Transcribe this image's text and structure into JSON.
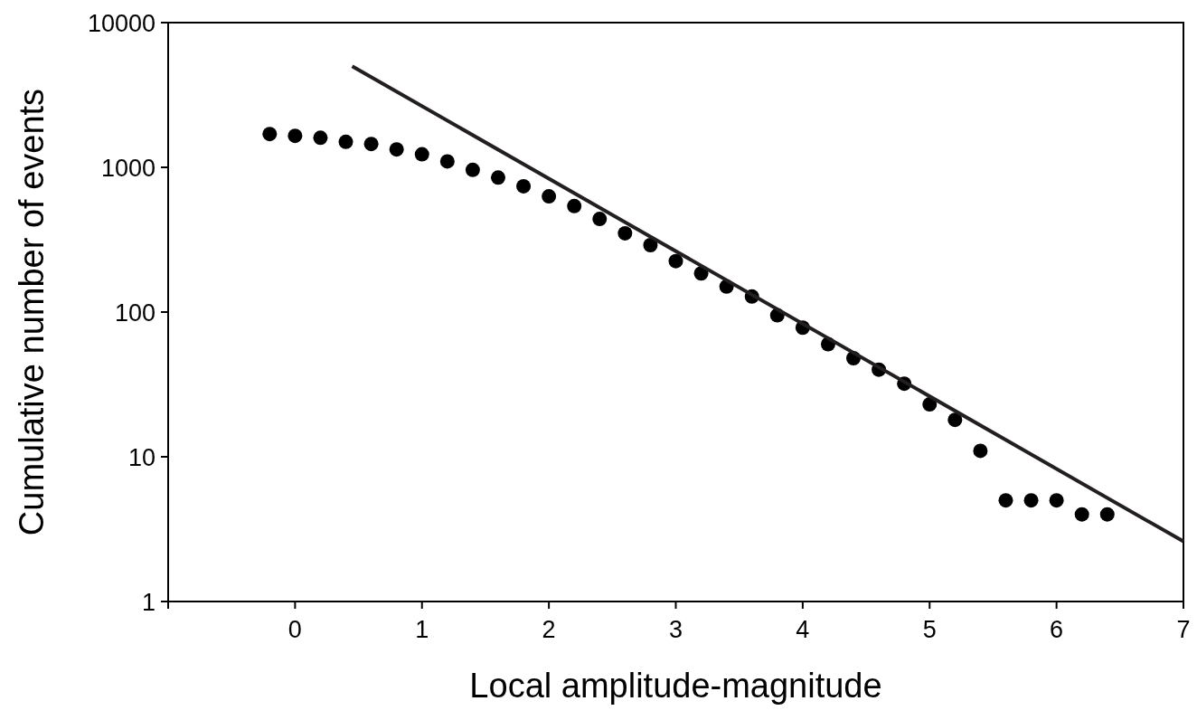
{
  "chart_data": {
    "type": "scatter",
    "xlabel": "Local amplitude-magnitude",
    "ylabel": "Cumulative number of events",
    "log": "y",
    "xlim": [
      -1,
      7
    ],
    "xticks": [
      {
        "value": -1,
        "label": null
      },
      0,
      1,
      2,
      3,
      4,
      5,
      6,
      7
    ],
    "ylim": [
      1,
      10000
    ],
    "yticks": [
      1,
      10,
      100,
      1000,
      10000
    ],
    "grid": false,
    "series": [
      {
        "marker": "circle",
        "color": "#000000",
        "x": [
          -0.2,
          0,
          0.2,
          0.4,
          0.6,
          0.8,
          1,
          1.2,
          1.4,
          1.6,
          1.8,
          2,
          2.2,
          2.4,
          2.6,
          2.8,
          3,
          3.2,
          3.4,
          3.6,
          3.8,
          4,
          4.2,
          4.4,
          4.6,
          4.8,
          5,
          5.2,
          5.4,
          5.6,
          5.8,
          6,
          6.2,
          6.4
        ],
        "values": [
          1700,
          1650,
          1600,
          1500,
          1450,
          1330,
          1230,
          1100,
          960,
          850,
          740,
          630,
          540,
          440,
          350,
          290,
          225,
          185,
          150,
          128,
          95,
          78,
          60,
          48,
          40,
          32,
          23,
          18,
          11,
          5,
          5,
          5,
          4,
          4
        ]
      },
      {
        "type": "line",
        "marker": "none",
        "line_style": "solid",
        "color": "#231f20",
        "x": [
          0.45,
          7
        ],
        "values": [
          5000,
          2.6
        ]
      }
    ]
  }
}
